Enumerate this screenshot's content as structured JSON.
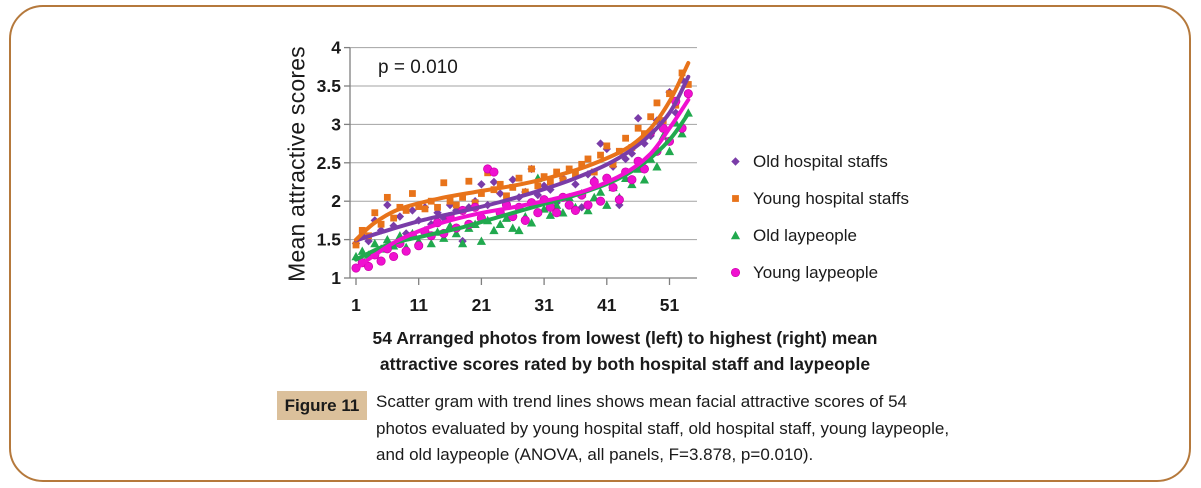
{
  "frame": {
    "border_color": "#b5793c"
  },
  "caption": {
    "label": "Figure 11",
    "text": "Scatter gram with trend lines shows mean facial attractive scores of 54 photos evaluated by young hospital staff, old hospital staff, young laypeople, and old laypeople (ANOVA, all panels, F=3.878, p=0.010)."
  },
  "axes": {
    "y_title": "Mean attractive scores",
    "x_label_line1": "54 Arranged photos from lowest (left) to highest (right) mean",
    "x_label_line2": "attractive scores rated by both hospital staff and laypeople"
  },
  "chart_data": {
    "type": "scatter",
    "annotation": "p = 0.010",
    "ylabel": "Mean attractive scores",
    "xlabel": "54 Arranged photos from lowest (left) to highest (right) mean attractive scores rated by both hospital staff and laypeople",
    "xlim": [
      0,
      55
    ],
    "ylim": [
      1,
      4
    ],
    "x_ticks": [
      "1",
      "11",
      "21",
      "31",
      "41",
      "51"
    ],
    "y_ticks": [
      "4",
      "3.5",
      "3",
      "2.5",
      "2",
      "1.5",
      "1"
    ],
    "grid": true,
    "legend_position": "right",
    "x": [
      1,
      2,
      3,
      4,
      5,
      6,
      7,
      8,
      9,
      10,
      11,
      12,
      13,
      14,
      15,
      16,
      17,
      18,
      19,
      20,
      21,
      22,
      23,
      24,
      25,
      26,
      27,
      28,
      29,
      30,
      31,
      32,
      33,
      34,
      35,
      36,
      37,
      38,
      39,
      40,
      41,
      42,
      43,
      44,
      45,
      46,
      47,
      48,
      49,
      50,
      51,
      52,
      53,
      54
    ],
    "series": [
      {
        "name": "Old hospital staffs",
        "marker": "diamond",
        "color": "#7a3ca8",
        "values": [
          1.45,
          1.55,
          1.48,
          1.75,
          1.62,
          1.95,
          1.68,
          1.8,
          1.58,
          1.88,
          1.75,
          1.92,
          1.7,
          1.85,
          1.78,
          1.95,
          1.88,
          1.48,
          1.92,
          2.0,
          2.22,
          1.95,
          2.25,
          2.1,
          1.98,
          2.28,
          2.05,
          2.12,
          2.42,
          2.08,
          2.2,
          2.15,
          1.98,
          2.3,
          1.95,
          2.22,
          1.92,
          2.35,
          2.28,
          2.75,
          2.68,
          2.45,
          1.95,
          2.55,
          2.62,
          3.08,
          2.75,
          2.85,
          3.05,
          2.95,
          3.42,
          3.15,
          3.58,
          3.4
        ],
        "trend": [
          [
            1,
            1.49
          ],
          [
            6,
            1.62
          ],
          [
            12,
            1.76
          ],
          [
            18,
            1.87
          ],
          [
            24,
            1.99
          ],
          [
            30,
            2.13
          ],
          [
            36,
            2.3
          ],
          [
            42,
            2.52
          ],
          [
            47,
            2.8
          ],
          [
            51,
            3.15
          ],
          [
            54,
            3.62
          ]
        ]
      },
      {
        "name": "Young hospital staffs",
        "marker": "square",
        "color": "#e8731a",
        "values": [
          1.43,
          1.62,
          1.55,
          1.85,
          1.7,
          2.05,
          1.78,
          1.92,
          1.88,
          2.1,
          1.93,
          1.9,
          2.0,
          1.92,
          2.24,
          2.0,
          1.95,
          2.05,
          2.26,
          1.98,
          2.1,
          2.37,
          2.15,
          2.22,
          2.07,
          2.18,
          2.3,
          2.12,
          2.42,
          2.2,
          2.32,
          2.25,
          2.38,
          2.28,
          2.42,
          2.35,
          2.48,
          2.55,
          2.38,
          2.6,
          2.72,
          2.48,
          2.65,
          2.82,
          2.7,
          2.95,
          2.88,
          3.1,
          3.28,
          3.05,
          3.4,
          3.25,
          3.67,
          3.52
        ],
        "trend": [
          [
            1,
            1.5
          ],
          [
            4,
            1.72
          ],
          [
            8,
            1.9
          ],
          [
            14,
            2.03
          ],
          [
            20,
            2.12
          ],
          [
            26,
            2.2
          ],
          [
            32,
            2.31
          ],
          [
            38,
            2.46
          ],
          [
            44,
            2.68
          ],
          [
            48,
            2.95
          ],
          [
            51,
            3.3
          ],
          [
            54,
            3.8
          ]
        ]
      },
      {
        "name": "Old laypeople",
        "marker": "triangle",
        "color": "#21a94e",
        "values": [
          1.28,
          1.35,
          1.3,
          1.45,
          1.38,
          1.5,
          1.42,
          1.55,
          1.4,
          1.58,
          1.48,
          1.62,
          1.45,
          1.6,
          1.52,
          1.68,
          1.58,
          1.45,
          1.65,
          1.7,
          1.48,
          1.75,
          1.62,
          1.7,
          1.78,
          1.65,
          1.62,
          1.8,
          1.72,
          2.3,
          1.9,
          1.82,
          1.95,
          1.85,
          2.05,
          1.92,
          2.1,
          1.88,
          2.05,
          2.12,
          1.95,
          2.18,
          2.05,
          2.3,
          2.22,
          2.42,
          2.28,
          2.55,
          2.45,
          2.85,
          2.65,
          3.02,
          2.88,
          3.15
        ],
        "trend": [
          [
            1,
            1.24
          ],
          [
            6,
            1.43
          ],
          [
            12,
            1.55
          ],
          [
            18,
            1.66
          ],
          [
            24,
            1.8
          ],
          [
            30,
            1.94
          ],
          [
            36,
            2.08
          ],
          [
            42,
            2.26
          ],
          [
            47,
            2.5
          ],
          [
            51,
            2.8
          ],
          [
            54,
            3.14
          ]
        ]
      },
      {
        "name": "Young laypeople",
        "marker": "circle",
        "color": "#f010d0",
        "values": [
          1.13,
          1.2,
          1.15,
          1.3,
          1.22,
          1.38,
          1.28,
          1.45,
          1.35,
          1.55,
          1.42,
          1.6,
          1.55,
          1.72,
          1.58,
          1.8,
          1.65,
          1.88,
          1.7,
          1.92,
          1.78,
          2.42,
          2.38,
          1.85,
          1.95,
          1.8,
          1.92,
          1.75,
          1.98,
          1.85,
          2.02,
          1.92,
          1.85,
          2.05,
          1.95,
          1.88,
          2.08,
          1.95,
          2.25,
          2.0,
          2.3,
          2.18,
          2.02,
          2.38,
          2.28,
          2.52,
          2.42,
          2.9,
          2.65,
          2.95,
          2.78,
          3.3,
          2.95,
          3.4
        ],
        "trend": [
          [
            1,
            1.12
          ],
          [
            4,
            1.3
          ],
          [
            8,
            1.5
          ],
          [
            14,
            1.7
          ],
          [
            20,
            1.83
          ],
          [
            26,
            1.92
          ],
          [
            32,
            2.02
          ],
          [
            38,
            2.15
          ],
          [
            44,
            2.37
          ],
          [
            48,
            2.62
          ],
          [
            51,
            2.95
          ],
          [
            54,
            3.32
          ]
        ]
      }
    ]
  }
}
